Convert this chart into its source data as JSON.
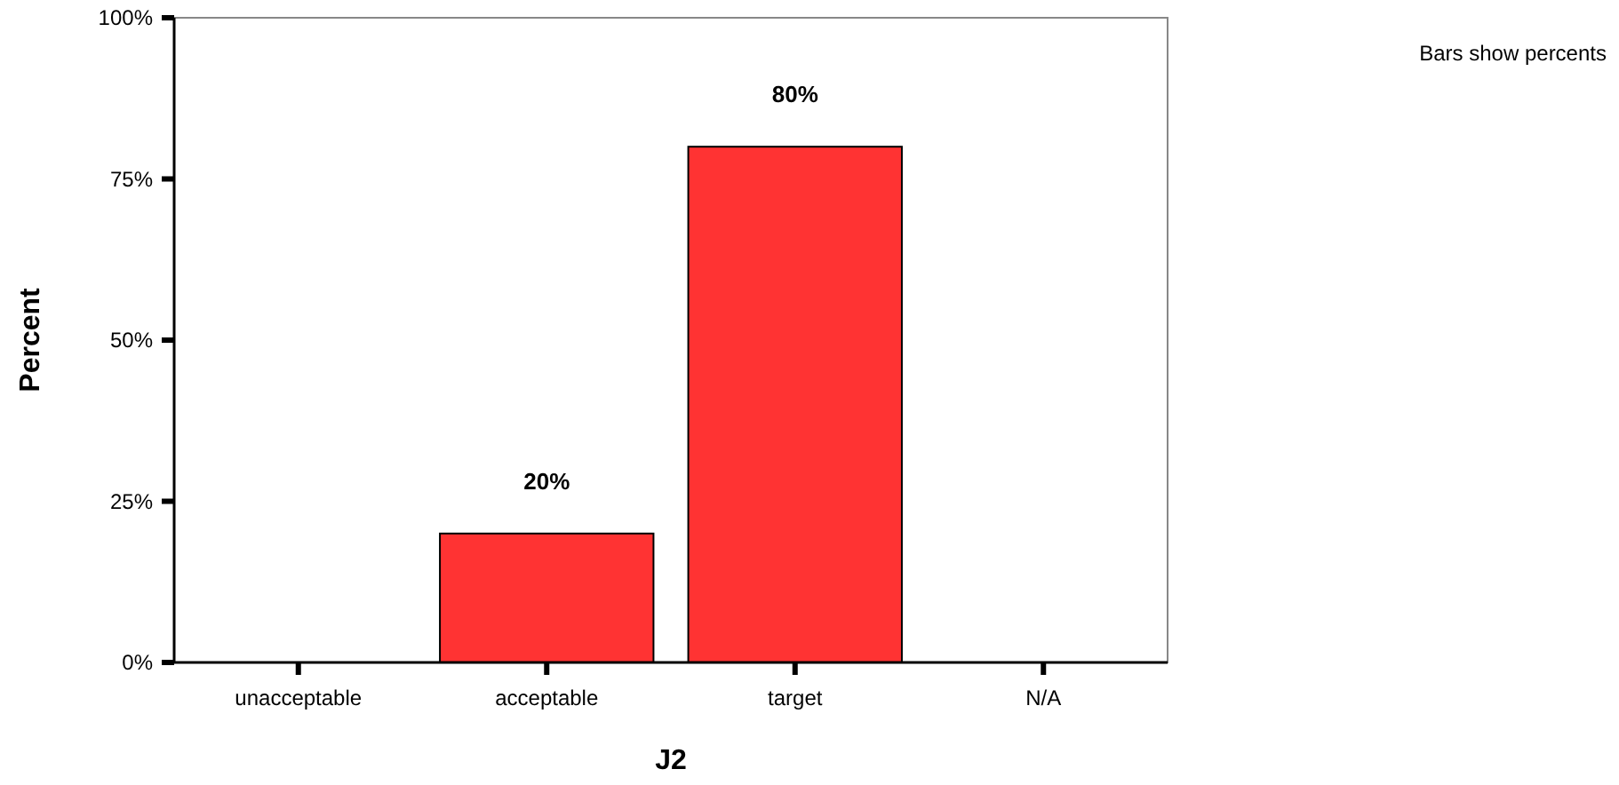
{
  "chart_data": {
    "type": "bar",
    "xlabel": "J2",
    "ylabel": "Percent",
    "categories": [
      "unacceptable",
      "acceptable",
      "target",
      "N/A"
    ],
    "values": [
      0,
      20,
      80,
      0
    ],
    "color": "#ff3333",
    "value_labels": [
      null,
      "20%",
      "80%",
      null
    ],
    "ylim": [
      0,
      100
    ],
    "yticks": [
      {
        "value": 0,
        "label": "0%"
      },
      {
        "value": 25,
        "label": "25%"
      },
      {
        "value": 50,
        "label": "50%"
      },
      {
        "value": 75,
        "label": "75%"
      },
      {
        "value": 100,
        "label": "100%"
      }
    ],
    "annotations": [
      "Bars show percents"
    ]
  }
}
